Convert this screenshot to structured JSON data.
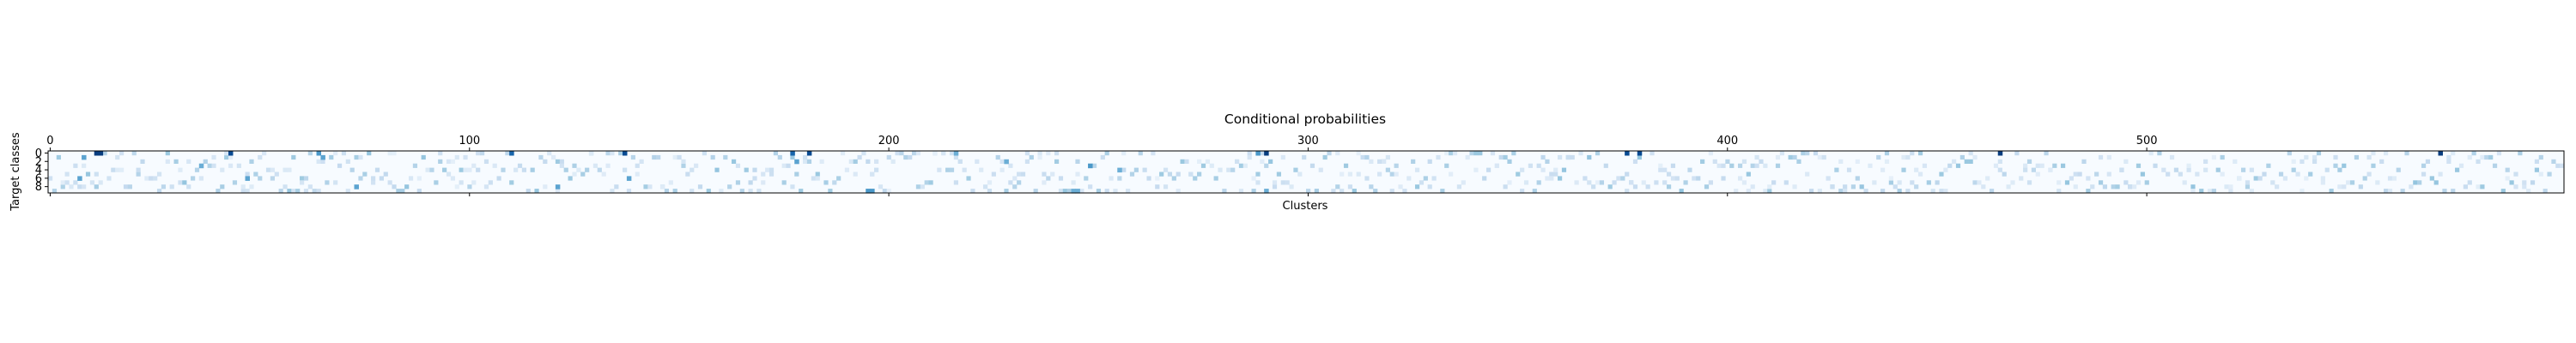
{
  "chart_data": {
    "type": "heatmap",
    "title": "Conditional probabilities",
    "xlabel": "Clusters",
    "ylabel": "Target classes",
    "x_axis_position": "top",
    "n_clusters": 600,
    "n_classes": 10,
    "x_ticks": [
      0,
      100,
      200,
      300,
      400,
      500
    ],
    "x_tick_labels": [
      "0",
      "100",
      "200",
      "300",
      "400",
      "500"
    ],
    "y_ticks": [
      0,
      2,
      4,
      6,
      8
    ],
    "y_tick_labels": [
      "0",
      "2",
      "4",
      "6",
      "8"
    ],
    "colormap": "Blues",
    "color_low": "#f7fbff",
    "color_high": "#08306b",
    "value_range": [
      0,
      1
    ],
    "grid": false,
    "legend": "none",
    "highlighted_cells": [
      {
        "x": 11,
        "y": 0,
        "value": 0.95
      },
      {
        "x": 12,
        "y": 0,
        "value": 0.95
      },
      {
        "x": 43,
        "y": 0,
        "value": 0.9
      },
      {
        "x": 64,
        "y": 0,
        "value": 0.6
      },
      {
        "x": 110,
        "y": 0,
        "value": 0.8
      },
      {
        "x": 137,
        "y": 0,
        "value": 0.9
      },
      {
        "x": 177,
        "y": 0,
        "value": 0.8
      },
      {
        "x": 181,
        "y": 0,
        "value": 0.9
      },
      {
        "x": 216,
        "y": 0,
        "value": 0.5
      },
      {
        "x": 288,
        "y": 0,
        "value": 0.6
      },
      {
        "x": 290,
        "y": 0,
        "value": 0.95
      },
      {
        "x": 376,
        "y": 0,
        "value": 0.9
      },
      {
        "x": 379,
        "y": 0,
        "value": 0.9
      },
      {
        "x": 465,
        "y": 0,
        "value": 0.95
      },
      {
        "x": 570,
        "y": 0,
        "value": 0.95
      },
      {
        "x": 8,
        "y": 1,
        "value": 0.55
      },
      {
        "x": 65,
        "y": 1,
        "value": 0.55
      },
      {
        "x": 178,
        "y": 2,
        "value": 0.55
      },
      {
        "x": 228,
        "y": 2,
        "value": 0.5
      },
      {
        "x": 36,
        "y": 3,
        "value": 0.5
      },
      {
        "x": 248,
        "y": 3,
        "value": 0.6
      },
      {
        "x": 255,
        "y": 4,
        "value": 0.5
      },
      {
        "x": 7,
        "y": 6,
        "value": 0.55
      },
      {
        "x": 47,
        "y": 6,
        "value": 0.55
      },
      {
        "x": 73,
        "y": 8,
        "value": 0.55
      },
      {
        "x": 121,
        "y": 8,
        "value": 0.55
      },
      {
        "x": 138,
        "y": 6,
        "value": 0.55
      },
      {
        "x": 195,
        "y": 9,
        "value": 0.6
      },
      {
        "x": 196,
        "y": 9,
        "value": 0.6
      },
      {
        "x": 244,
        "y": 9,
        "value": 0.5
      },
      {
        "x": 245,
        "y": 9,
        "value": 0.5
      },
      {
        "x": 290,
        "y": 9,
        "value": 0.5
      }
    ],
    "background_cells_note_value": 0.03
  }
}
